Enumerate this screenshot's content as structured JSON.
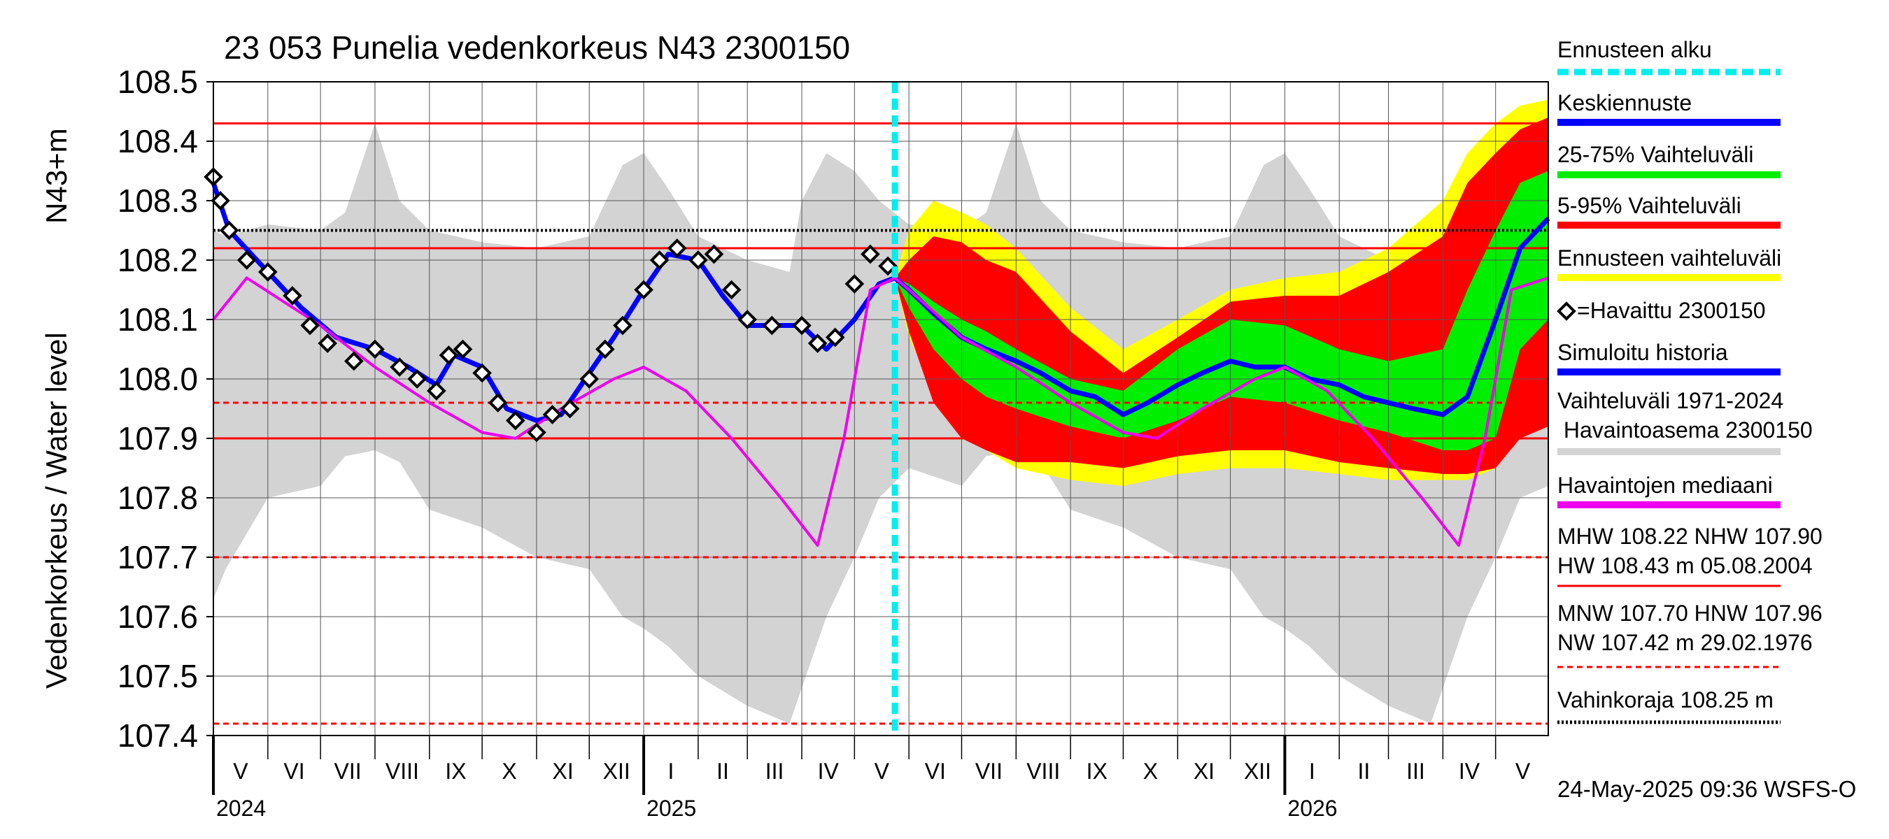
{
  "chart_data": {
    "type": "line",
    "title": "23 053 Punelia vedenkorkeus N43 2300150",
    "ylabel": "Vedenkorkeus / Water level",
    "ylabel_unit": "N43+m",
    "ylim": [
      107.4,
      108.5
    ],
    "y_ticks": [
      "107.4",
      "107.5",
      "107.6",
      "107.7",
      "107.8",
      "107.9",
      "108.0",
      "108.1",
      "108.2",
      "108.3",
      "108.4",
      "108.5"
    ],
    "x_range": [
      "2024-05-01",
      "2026-05-31"
    ],
    "months": [
      {
        "label": "V",
        "start": "2024-05-01",
        "end": "2024-06-01"
      },
      {
        "label": "VI",
        "start": "2024-06-01",
        "end": "2024-07-01"
      },
      {
        "label": "VII",
        "start": "2024-07-01",
        "end": "2024-08-01"
      },
      {
        "label": "VIII",
        "start": "2024-08-01",
        "end": "2024-09-01"
      },
      {
        "label": "IX",
        "start": "2024-09-01",
        "end": "2024-10-01"
      },
      {
        "label": "X",
        "start": "2024-10-01",
        "end": "2024-11-01"
      },
      {
        "label": "XI",
        "start": "2024-11-01",
        "end": "2024-12-01"
      },
      {
        "label": "XII",
        "start": "2024-12-01",
        "end": "2025-01-01"
      },
      {
        "label": "I",
        "start": "2025-01-01",
        "end": "2025-02-01"
      },
      {
        "label": "II",
        "start": "2025-02-01",
        "end": "2025-03-01"
      },
      {
        "label": "III",
        "start": "2025-03-01",
        "end": "2025-04-01"
      },
      {
        "label": "IV",
        "start": "2025-04-01",
        "end": "2025-05-01"
      },
      {
        "label": "V",
        "start": "2025-05-01",
        "end": "2025-06-01"
      },
      {
        "label": "VI",
        "start": "2025-06-01",
        "end": "2025-07-01"
      },
      {
        "label": "VII",
        "start": "2025-07-01",
        "end": "2025-08-01"
      },
      {
        "label": "VIII",
        "start": "2025-08-01",
        "end": "2025-09-01"
      },
      {
        "label": "IX",
        "start": "2025-09-01",
        "end": "2025-10-01"
      },
      {
        "label": "X",
        "start": "2025-10-01",
        "end": "2025-11-01"
      },
      {
        "label": "XI",
        "start": "2025-11-01",
        "end": "2025-12-01"
      },
      {
        "label": "XII",
        "start": "2025-12-01",
        "end": "2026-01-01"
      },
      {
        "label": "I",
        "start": "2026-01-01",
        "end": "2026-02-01"
      },
      {
        "label": "II",
        "start": "2026-02-01",
        "end": "2026-03-01"
      },
      {
        "label": "III",
        "start": "2026-03-01",
        "end": "2026-04-01"
      },
      {
        "label": "IV",
        "start": "2026-04-01",
        "end": "2026-05-01"
      },
      {
        "label": "V",
        "start": "2026-05-01",
        "end": "2026-06-01"
      }
    ],
    "years": [
      {
        "label": "2024",
        "date": "2024-05-01"
      },
      {
        "label": "2025",
        "date": "2025-01-01"
      },
      {
        "label": "2026",
        "date": "2026-01-01"
      }
    ],
    "forecast_start": "2025-05-24",
    "reference_lines": [
      {
        "value": 108.43,
        "style": "solid",
        "color": "#ff0000",
        "meaning": "HW"
      },
      {
        "value": 108.22,
        "style": "solid",
        "color": "#ff0000",
        "meaning": "MHW"
      },
      {
        "value": 107.9,
        "style": "solid",
        "color": "#ff0000",
        "meaning": "NHW"
      },
      {
        "value": 108.25,
        "style": "dotted",
        "color": "#000000",
        "meaning": "Vahinkoraja"
      },
      {
        "value": 107.96,
        "style": "dashed",
        "color": "#ff0000",
        "meaning": "HNW"
      },
      {
        "value": 107.7,
        "style": "dashed",
        "color": "#ff0000",
        "meaning": "MNW"
      },
      {
        "value": 107.42,
        "style": "dashed",
        "color": "#ff0000",
        "meaning": "NW"
      }
    ],
    "series": [
      {
        "name": "Vaihteluväli 1971-2024 Havaintoasema 2300150",
        "kind": "band",
        "color": "#d3d3d3",
        "x": [
          "2024-05-01",
          "2024-05-08",
          "2024-06-01",
          "2024-07-01",
          "2024-07-15",
          "2024-08-01",
          "2024-08-15",
          "2024-09-01",
          "2024-10-01",
          "2024-11-01",
          "2024-12-01",
          "2024-12-20",
          "2025-01-01",
          "2025-01-15",
          "2025-02-01",
          "2025-03-01",
          "2025-03-25",
          "2025-04-01",
          "2025-04-15",
          "2025-05-01",
          "2025-05-15",
          "2025-06-01",
          "2025-07-01",
          "2025-07-15",
          "2025-08-01",
          "2025-08-15",
          "2025-09-01",
          "2025-10-01",
          "2025-11-01",
          "2025-12-01",
          "2025-12-20",
          "2026-01-01",
          "2026-01-15",
          "2026-02-01",
          "2026-03-01",
          "2026-03-25",
          "2026-04-01",
          "2026-04-15",
          "2026-05-01",
          "2026-05-15",
          "2026-05-31"
        ],
        "upper": [
          108.25,
          108.24,
          108.26,
          108.25,
          108.28,
          108.43,
          108.3,
          108.25,
          108.23,
          108.22,
          108.24,
          108.36,
          108.38,
          108.32,
          108.24,
          108.2,
          108.18,
          108.3,
          108.38,
          108.35,
          108.3,
          108.26,
          108.25,
          108.28,
          108.43,
          108.3,
          108.25,
          108.23,
          108.22,
          108.24,
          108.36,
          108.38,
          108.32,
          108.24,
          108.2,
          108.18,
          108.3,
          108.38,
          108.35,
          108.3,
          108.27
        ],
        "lower": [
          107.63,
          107.68,
          107.8,
          107.82,
          107.87,
          107.88,
          107.86,
          107.78,
          107.75,
          107.7,
          107.68,
          107.6,
          107.58,
          107.55,
          107.5,
          107.45,
          107.42,
          107.48,
          107.6,
          107.7,
          107.8,
          107.85,
          107.82,
          107.87,
          107.88,
          107.86,
          107.78,
          107.75,
          107.7,
          107.68,
          107.6,
          107.58,
          107.55,
          107.5,
          107.45,
          107.42,
          107.48,
          107.6,
          107.7,
          107.8,
          107.82
        ]
      },
      {
        "name": "Ennusteen vaihteluväli",
        "kind": "band",
        "color": "#ffff00",
        "x": [
          "2025-05-24",
          "2025-06-01",
          "2025-06-15",
          "2025-07-01",
          "2025-07-15",
          "2025-08-01",
          "2025-09-01",
          "2025-10-01",
          "2025-11-01",
          "2025-12-01",
          "2026-01-01",
          "2026-02-01",
          "2026-03-01",
          "2026-04-01",
          "2026-04-15",
          "2026-05-01",
          "2026-05-15",
          "2026-05-31"
        ],
        "upper": [
          108.17,
          108.25,
          108.3,
          108.28,
          108.26,
          108.22,
          108.12,
          108.05,
          108.1,
          108.15,
          108.17,
          108.18,
          108.22,
          108.3,
          108.38,
          108.43,
          108.46,
          108.47
        ],
        "lower": [
          108.17,
          108.07,
          107.98,
          107.93,
          107.88,
          107.85,
          107.83,
          107.82,
          107.84,
          107.85,
          107.85,
          107.84,
          107.83,
          107.83,
          107.83,
          107.85,
          107.92,
          107.99
        ]
      },
      {
        "name": "5-95% Vaihteluväli",
        "kind": "band",
        "color": "#ff0000",
        "x": [
          "2025-05-24",
          "2025-06-01",
          "2025-06-15",
          "2025-07-01",
          "2025-07-15",
          "2025-08-01",
          "2025-09-01",
          "2025-10-01",
          "2025-11-01",
          "2025-12-01",
          "2026-01-01",
          "2026-02-01",
          "2026-03-01",
          "2026-04-01",
          "2026-04-15",
          "2026-05-01",
          "2026-05-15",
          "2026-05-31"
        ],
        "upper": [
          108.17,
          108.2,
          108.24,
          108.23,
          108.2,
          108.18,
          108.08,
          108.01,
          108.07,
          108.13,
          108.14,
          108.14,
          108.18,
          108.24,
          108.33,
          108.38,
          108.42,
          108.44
        ],
        "lower": [
          108.17,
          108.08,
          107.96,
          107.9,
          107.88,
          107.86,
          107.86,
          107.85,
          107.87,
          107.88,
          107.88,
          107.86,
          107.85,
          107.84,
          107.84,
          107.85,
          107.9,
          107.92
        ]
      },
      {
        "name": "25-75% Vaihteluväli",
        "kind": "band",
        "color": "#00ee00",
        "x": [
          "2025-05-24",
          "2025-06-01",
          "2025-06-15",
          "2025-07-01",
          "2025-07-15",
          "2025-08-01",
          "2025-09-01",
          "2025-10-01",
          "2025-11-01",
          "2025-12-01",
          "2026-01-01",
          "2026-02-01",
          "2026-03-01",
          "2026-04-01",
          "2026-04-15",
          "2026-05-01",
          "2026-05-15",
          "2026-05-31"
        ],
        "upper": [
          108.17,
          108.16,
          108.13,
          108.1,
          108.08,
          108.05,
          108.0,
          107.98,
          108.05,
          108.1,
          108.09,
          108.05,
          108.03,
          108.05,
          108.15,
          108.25,
          108.33,
          108.35
        ],
        "lower": [
          108.17,
          108.12,
          108.05,
          108.0,
          107.97,
          107.95,
          107.92,
          107.9,
          107.93,
          107.97,
          107.96,
          107.93,
          107.91,
          107.88,
          107.88,
          107.9,
          108.05,
          108.1
        ]
      },
      {
        "name": "Keskiennuste",
        "kind": "line",
        "color": "#0000ff",
        "x": [
          "2025-05-24",
          "2025-06-01",
          "2025-06-15",
          "2025-07-01",
          "2025-07-15",
          "2025-08-01",
          "2025-08-15",
          "2025-09-01",
          "2025-09-15",
          "2025-10-01",
          "2025-10-15",
          "2025-11-01",
          "2025-11-15",
          "2025-12-01",
          "2025-12-15",
          "2026-01-01",
          "2026-01-15",
          "2026-02-01",
          "2026-02-15",
          "2026-03-01",
          "2026-03-15",
          "2026-04-01",
          "2026-04-15",
          "2026-05-01",
          "2026-05-15",
          "2026-05-31"
        ],
        "values": [
          108.17,
          108.15,
          108.11,
          108.07,
          108.05,
          108.03,
          108.01,
          107.98,
          107.97,
          107.94,
          107.96,
          107.99,
          108.01,
          108.03,
          108.02,
          108.02,
          108.0,
          107.99,
          107.97,
          107.96,
          107.95,
          107.94,
          107.97,
          108.1,
          108.22,
          108.27
        ]
      },
      {
        "name": "Simuloitu historia",
        "kind": "line",
        "color": "#0000ff",
        "x": [
          "2024-05-01",
          "2024-05-10",
          "2024-06-01",
          "2024-06-20",
          "2024-07-10",
          "2024-08-01",
          "2024-08-20",
          "2024-09-05",
          "2024-09-15",
          "2024-10-01",
          "2024-10-15",
          "2024-11-01",
          "2024-11-15",
          "2024-12-01",
          "2024-12-15",
          "2025-01-01",
          "2025-01-15",
          "2025-02-01",
          "2025-02-15",
          "2025-03-01",
          "2025-03-15",
          "2025-04-01",
          "2025-04-15",
          "2025-05-01",
          "2025-05-15",
          "2025-05-24"
        ],
        "values": [
          108.33,
          108.25,
          108.18,
          108.12,
          108.07,
          108.05,
          108.02,
          107.99,
          108.04,
          108.02,
          107.95,
          107.93,
          107.94,
          108.01,
          108.07,
          108.15,
          108.21,
          108.2,
          108.14,
          108.09,
          108.09,
          108.09,
          108.05,
          108.1,
          108.16,
          108.17
        ]
      },
      {
        "name": "Havaintojen mediaani",
        "kind": "line",
        "color": "#ee00ee",
        "x": [
          "2024-05-01",
          "2024-05-20",
          "2024-06-10",
          "2024-07-01",
          "2024-08-01",
          "2024-09-01",
          "2024-10-01",
          "2024-10-20",
          "2024-11-15",
          "2024-12-15",
          "2025-01-01",
          "2025-01-25",
          "2025-02-20",
          "2025-03-20",
          "2025-04-10",
          "2025-04-25",
          "2025-05-10",
          "2025-05-24",
          "2025-06-01",
          "2025-06-20",
          "2025-07-01",
          "2025-08-01",
          "2025-09-01",
          "2025-10-01",
          "2025-10-20",
          "2025-11-15",
          "2025-12-15",
          "2026-01-01",
          "2026-01-25",
          "2026-02-20",
          "2026-03-20",
          "2026-04-10",
          "2026-04-25",
          "2026-05-10",
          "2026-05-31"
        ],
        "values": [
          108.1,
          108.17,
          108.13,
          108.09,
          108.02,
          107.96,
          107.91,
          107.9,
          107.95,
          108.0,
          108.02,
          107.98,
          107.9,
          107.8,
          107.72,
          107.9,
          108.15,
          108.17,
          108.15,
          108.1,
          108.07,
          108.02,
          107.96,
          107.91,
          107.9,
          107.95,
          108.0,
          108.02,
          107.98,
          107.9,
          107.8,
          107.72,
          107.9,
          108.15,
          108.17
        ]
      },
      {
        "name": "Havaittu 2300150",
        "kind": "markers",
        "color": "#000000",
        "x": [
          "2024-05-01",
          "2024-05-05",
          "2024-05-10",
          "2024-05-20",
          "2024-06-01",
          "2024-06-15",
          "2024-06-25",
          "2024-07-05",
          "2024-07-20",
          "2024-08-01",
          "2024-08-15",
          "2024-08-25",
          "2024-09-05",
          "2024-09-12",
          "2024-09-20",
          "2024-10-01",
          "2024-10-10",
          "2024-10-20",
          "2024-11-01",
          "2024-11-10",
          "2024-11-20",
          "2024-12-01",
          "2024-12-10",
          "2024-12-20",
          "2025-01-01",
          "2025-01-10",
          "2025-01-20",
          "2025-02-01",
          "2025-02-10",
          "2025-02-20",
          "2025-03-01",
          "2025-03-15",
          "2025-04-01",
          "2025-04-10",
          "2025-04-20",
          "2025-05-01",
          "2025-05-10",
          "2025-05-20"
        ],
        "values": [
          108.34,
          108.3,
          108.25,
          108.2,
          108.18,
          108.14,
          108.09,
          108.06,
          108.03,
          108.05,
          108.02,
          108.0,
          107.98,
          108.04,
          108.05,
          108.01,
          107.96,
          107.93,
          107.91,
          107.94,
          107.95,
          108.0,
          108.05,
          108.09,
          108.15,
          108.2,
          108.22,
          108.2,
          108.21,
          108.15,
          108.1,
          108.09,
          108.09,
          108.06,
          108.07,
          108.16,
          108.21,
          108.19
        ]
      }
    ],
    "legend": {
      "position": "right",
      "items": [
        {
          "label": "Ennusteen alku",
          "color": "#00eeee",
          "swatch": "dotted"
        },
        {
          "label": "Keskiennuste",
          "color": "#0000ff",
          "swatch": "thick"
        },
        {
          "label": "25-75% Vaihteluväli",
          "color": "#00ee00",
          "swatch": "thick"
        },
        {
          "label": "5-95% Vaihteluväli",
          "color": "#ff0000",
          "swatch": "thick"
        },
        {
          "label": "Ennusteen vaihteluväli",
          "color": "#ffff00",
          "swatch": "thick"
        },
        {
          "label": "=Havaittu 2300150",
          "color": "#000000",
          "swatch": "diamond"
        },
        {
          "label": "Simuloitu historia",
          "color": "#0000ff",
          "swatch": "thick"
        },
        {
          "label": "Vaihteluväli 1971-2024",
          "label2": " Havaintoasema 2300150",
          "color": "#d3d3d3",
          "swatch": "thick"
        },
        {
          "label": "Havaintojen mediaani",
          "color": "#ee00ee",
          "swatch": "thick"
        },
        {
          "label": "MHW 108.22 NHW 107.90",
          "label2": "HW 108.43 m 05.08.2004",
          "color": "#ff0000",
          "swatch": "thin"
        },
        {
          "label": "MNW 107.70 HNW 107.96",
          "label2": "NW 107.42 m 29.02.1976",
          "color": "#ff0000",
          "swatch": "dashed"
        },
        {
          "label": "Vahinkoraja 108.25 m",
          "color": "#000000",
          "swatch": "dotted"
        }
      ]
    },
    "footer": "24-May-2025 09:36 WSFS-O"
  }
}
